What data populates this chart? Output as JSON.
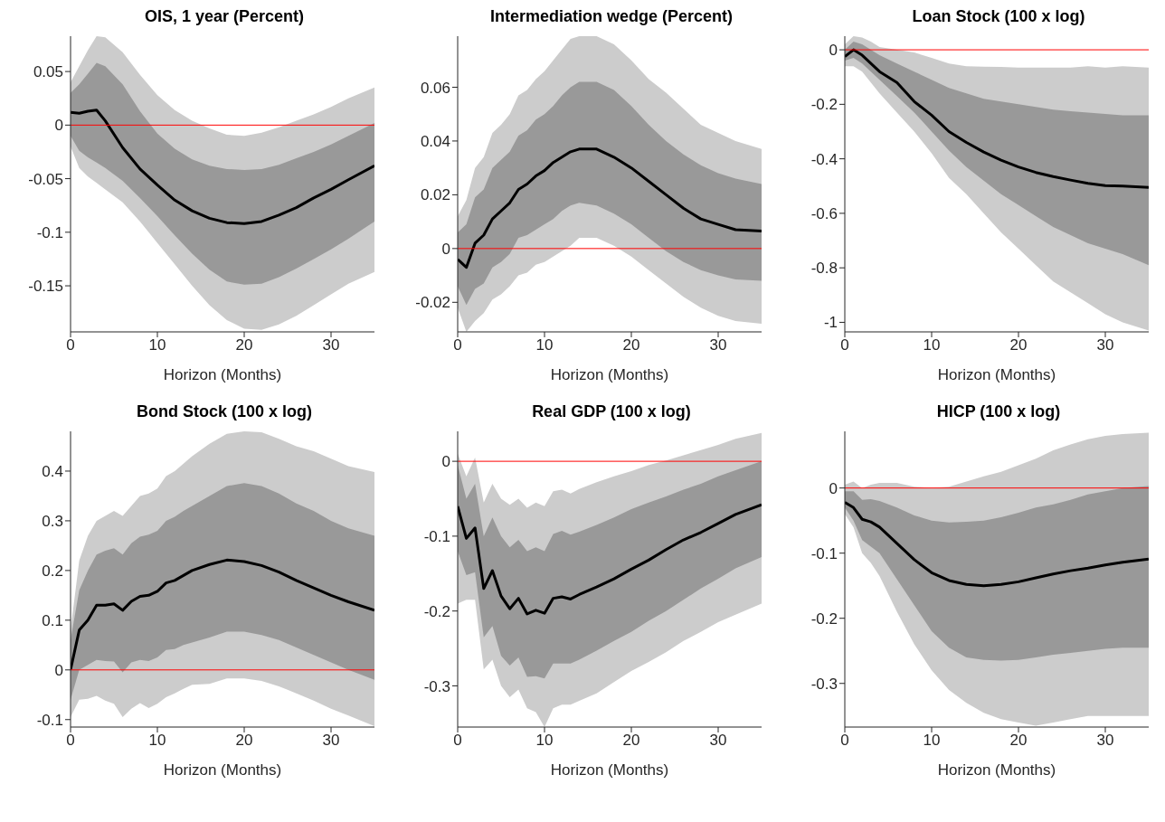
{
  "chart_data": [
    {
      "type": "line",
      "title": "OIS, 1 year (Percent)",
      "xlabel": "Horizon (Months)",
      "x": [
        0,
        1,
        2,
        3,
        4,
        6,
        8,
        10,
        12,
        14,
        16,
        18,
        20,
        22,
        24,
        26,
        28,
        30,
        32,
        35
      ],
      "xlim": [
        0,
        35
      ],
      "xticks": [
        0,
        10,
        20,
        30
      ],
      "ylim": [
        -0.193,
        0.083
      ],
      "yticks": [
        -0.15,
        -0.1,
        -0.05,
        0,
        0.05
      ],
      "ref_lines": [
        {
          "axis": "y",
          "value": 0,
          "color": "#ff0000"
        }
      ],
      "series": [
        {
          "type": "line",
          "color": "#cccccc",
          "values": [
            null,
            null,
            null,
            null,
            null,
            null,
            null,
            null,
            null,
            null,
            null,
            null,
            null,
            null,
            null,
            null,
            null,
            null,
            null,
            null
          ],
          "lower": [
            -0.02,
            -0.04,
            -0.048,
            -0.054,
            -0.06,
            -0.072,
            -0.09,
            -0.11,
            -0.13,
            -0.15,
            -0.168,
            -0.182,
            -0.19,
            -0.191,
            -0.186,
            -0.178,
            -0.168,
            -0.158,
            -0.148,
            -0.137
          ],
          "upper": [
            0.04,
            0.055,
            0.07,
            0.083,
            0.082,
            0.068,
            0.047,
            0.028,
            0.014,
            0.004,
            -0.003,
            -0.009,
            -0.01,
            -0.007,
            -0.002,
            0.004,
            0.01,
            0.017,
            0.025,
            0.035
          ]
        },
        {
          "type": "line",
          "color": "#999999",
          "values": [
            null,
            null,
            null,
            null,
            null,
            null,
            null,
            null,
            null,
            null,
            null,
            null,
            null,
            null,
            null,
            null,
            null,
            null,
            null,
            null
          ],
          "lower": [
            -0.01,
            -0.024,
            -0.03,
            -0.035,
            -0.04,
            -0.052,
            -0.068,
            -0.085,
            -0.103,
            -0.12,
            -0.135,
            -0.146,
            -0.149,
            -0.148,
            -0.142,
            -0.134,
            -0.125,
            -0.116,
            -0.106,
            -0.09
          ],
          "upper": [
            0.03,
            0.038,
            0.048,
            0.058,
            0.055,
            0.038,
            0.013,
            -0.008,
            -0.022,
            -0.032,
            -0.038,
            -0.041,
            -0.042,
            -0.041,
            -0.037,
            -0.031,
            -0.025,
            -0.018,
            -0.01,
            0.002
          ]
        },
        {
          "type": "line",
          "color": "#000000",
          "values": [
            0.012,
            0.011,
            0.013,
            0.014,
            0.004,
            -0.021,
            -0.041,
            -0.056,
            -0.07,
            -0.08,
            -0.087,
            -0.091,
            -0.092,
            -0.09,
            -0.084,
            -0.077,
            -0.068,
            -0.06,
            -0.051,
            -0.038
          ]
        }
      ]
    },
    {
      "type": "line",
      "title": "Intermediation wedge (Percent)",
      "xlabel": "Horizon (Months)",
      "x": [
        0,
        1,
        2,
        3,
        4,
        5,
        6,
        7,
        8,
        9,
        10,
        11,
        12,
        13,
        14,
        16,
        18,
        20,
        22,
        24,
        26,
        28,
        30,
        32,
        35
      ],
      "xlim": [
        0,
        35
      ],
      "xticks": [
        0,
        10,
        20,
        30
      ],
      "ylim": [
        -0.031,
        0.079
      ],
      "yticks": [
        -0.02,
        0,
        0.02,
        0.04,
        0.06
      ],
      "ref_lines": [
        {
          "axis": "y",
          "value": 0,
          "color": "#ff0000"
        }
      ],
      "series": [
        {
          "type": "line",
          "color": "#cccccc",
          "values": [
            null,
            null,
            null,
            null,
            null,
            null,
            null,
            null,
            null,
            null,
            null,
            null,
            null,
            null,
            null,
            null,
            null,
            null,
            null,
            null,
            null,
            null,
            null,
            null,
            null
          ],
          "lower": [
            -0.022,
            -0.031,
            -0.027,
            -0.024,
            -0.019,
            -0.017,
            -0.014,
            -0.01,
            -0.009,
            -0.006,
            -0.005,
            -0.003,
            -0.001,
            0.001,
            0.004,
            0.004,
            0.001,
            -0.003,
            -0.008,
            -0.013,
            -0.018,
            -0.022,
            -0.025,
            -0.027,
            -0.028
          ],
          "upper": [
            0.012,
            0.018,
            0.03,
            0.034,
            0.043,
            0.046,
            0.05,
            0.057,
            0.059,
            0.063,
            0.066,
            0.07,
            0.074,
            0.078,
            0.079,
            0.079,
            0.076,
            0.07,
            0.063,
            0.058,
            0.052,
            0.046,
            0.043,
            0.04,
            0.037
          ]
        },
        {
          "type": "line",
          "color": "#999999",
          "values": [
            null,
            null,
            null,
            null,
            null,
            null,
            null,
            null,
            null,
            null,
            null,
            null,
            null,
            null,
            null,
            null,
            null,
            null,
            null,
            null,
            null,
            null,
            null,
            null,
            null
          ],
          "lower": [
            -0.014,
            -0.021,
            -0.015,
            -0.013,
            -0.007,
            -0.005,
            -0.002,
            0.004,
            0.005,
            0.007,
            0.009,
            0.011,
            0.014,
            0.016,
            0.017,
            0.016,
            0.013,
            0.009,
            0.004,
            -0.001,
            -0.005,
            -0.008,
            -0.01,
            -0.0115,
            -0.012
          ],
          "upper": [
            0.006,
            0.009,
            0.019,
            0.022,
            0.03,
            0.033,
            0.036,
            0.042,
            0.044,
            0.048,
            0.05,
            0.053,
            0.057,
            0.06,
            0.062,
            0.062,
            0.059,
            0.053,
            0.046,
            0.04,
            0.035,
            0.031,
            0.028,
            0.026,
            0.024
          ]
        },
        {
          "type": "line",
          "color": "#000000",
          "values": [
            -0.004,
            -0.007,
            0.002,
            0.005,
            0.011,
            0.014,
            0.017,
            0.022,
            0.024,
            0.027,
            0.029,
            0.032,
            0.034,
            0.036,
            0.037,
            0.037,
            0.034,
            0.03,
            0.025,
            0.02,
            0.015,
            0.011,
            0.009,
            0.007,
            0.0065
          ]
        }
      ]
    },
    {
      "type": "line",
      "title": "Loan Stock (100 x log)",
      "xlabel": "Horizon (Months)",
      "x": [
        0,
        1,
        2,
        3,
        4,
        6,
        8,
        10,
        12,
        14,
        16,
        18,
        20,
        22,
        24,
        26,
        28,
        30,
        32,
        35
      ],
      "xlim": [
        0,
        35
      ],
      "xticks": [
        0,
        10,
        20,
        30
      ],
      "ylim": [
        -1.035,
        0.05
      ],
      "yticks": [
        -1,
        -0.8,
        -0.6,
        -0.4,
        -0.2,
        0
      ],
      "ref_lines": [
        {
          "axis": "y",
          "value": 0,
          "color": "#ff0000"
        }
      ],
      "series": [
        {
          "type": "line",
          "color": "#cccccc",
          "values": [
            null,
            null,
            null,
            null,
            null,
            null,
            null,
            null,
            null,
            null,
            null,
            null,
            null,
            null,
            null,
            null,
            null,
            null,
            null,
            null
          ],
          "lower": [
            -0.06,
            -0.06,
            -0.08,
            -0.12,
            -0.16,
            -0.23,
            -0.3,
            -0.38,
            -0.47,
            -0.53,
            -0.6,
            -0.67,
            -0.73,
            -0.79,
            -0.85,
            -0.89,
            -0.93,
            -0.97,
            -1.0,
            -1.03
          ],
          "upper": [
            0.02,
            0.05,
            0.045,
            0.03,
            0.01,
            0,
            -0.01,
            -0.03,
            -0.05,
            -0.06,
            -0.062,
            -0.063,
            -0.065,
            -0.065,
            -0.065,
            -0.065,
            -0.06,
            -0.065,
            -0.06,
            -0.065
          ]
        },
        {
          "type": "line",
          "color": "#999999",
          "values": [
            null,
            null,
            null,
            null,
            null,
            null,
            null,
            null,
            null,
            null,
            null,
            null,
            null,
            null,
            null,
            null,
            null,
            null,
            null,
            null
          ],
          "lower": [
            -0.04,
            -0.03,
            -0.05,
            -0.08,
            -0.11,
            -0.17,
            -0.23,
            -0.3,
            -0.37,
            -0.43,
            -0.48,
            -0.53,
            -0.57,
            -0.61,
            -0.65,
            -0.68,
            -0.71,
            -0.73,
            -0.75,
            -0.79
          ],
          "upper": [
            0,
            0.03,
            0.02,
            0,
            -0.02,
            -0.05,
            -0.08,
            -0.11,
            -0.14,
            -0.16,
            -0.18,
            -0.19,
            -0.2,
            -0.21,
            -0.22,
            -0.225,
            -0.23,
            -0.235,
            -0.24,
            -0.24
          ]
        },
        {
          "type": "line",
          "color": "#000000",
          "values": [
            -0.025,
            0,
            -0.02,
            -0.05,
            -0.08,
            -0.12,
            -0.19,
            -0.24,
            -0.3,
            -0.34,
            -0.375,
            -0.405,
            -0.43,
            -0.45,
            -0.465,
            -0.478,
            -0.49,
            -0.498,
            -0.5,
            -0.505
          ]
        }
      ]
    },
    {
      "type": "line",
      "title": "Bond Stock (100 x log)",
      "xlabel": "Horizon (Months)",
      "x": [
        0,
        1,
        2,
        3,
        4,
        5,
        6,
        7,
        8,
        9,
        10,
        11,
        12,
        13,
        14,
        16,
        18,
        20,
        22,
        24,
        26,
        28,
        30,
        32,
        35
      ],
      "xlim": [
        0,
        35
      ],
      "xticks": [
        0,
        10,
        20,
        30
      ],
      "ylim": [
        -0.115,
        0.48
      ],
      "yticks": [
        -0.1,
        0,
        0.1,
        0.2,
        0.3,
        0.4
      ],
      "ref_lines": [
        {
          "axis": "y",
          "value": 0,
          "color": "#ff0000"
        }
      ],
      "series": [
        {
          "type": "line",
          "color": "#cccccc",
          "values": [
            null,
            null,
            null,
            null,
            null,
            null,
            null,
            null,
            null,
            null,
            null,
            null,
            null,
            null,
            null,
            null,
            null,
            null,
            null,
            null,
            null,
            null,
            null,
            null,
            null
          ],
          "lower": [
            -0.095,
            -0.06,
            -0.058,
            -0.052,
            -0.062,
            -0.068,
            -0.095,
            -0.078,
            -0.067,
            -0.077,
            -0.068,
            -0.055,
            -0.047,
            -0.038,
            -0.03,
            -0.028,
            -0.017,
            -0.017,
            -0.022,
            -0.033,
            -0.047,
            -0.062,
            -0.078,
            -0.092,
            -0.113
          ],
          "upper": [
            0.08,
            0.22,
            0.27,
            0.3,
            0.31,
            0.32,
            0.31,
            0.33,
            0.35,
            0.355,
            0.365,
            0.39,
            0.4,
            0.415,
            0.43,
            0.455,
            0.475,
            0.48,
            0.478,
            0.465,
            0.45,
            0.44,
            0.425,
            0.41,
            0.398
          ]
        },
        {
          "type": "line",
          "color": "#999999",
          "values": [
            null,
            null,
            null,
            null,
            null,
            null,
            null,
            null,
            null,
            null,
            null,
            null,
            null,
            null,
            null,
            null,
            null,
            null,
            null,
            null,
            null,
            null,
            null,
            null,
            null
          ],
          "lower": [
            -0.06,
            0,
            0.01,
            0.02,
            0.018,
            0.017,
            -0.005,
            0.015,
            0.02,
            0.018,
            0.025,
            0.04,
            0.042,
            0.05,
            0.055,
            0.065,
            0.077,
            0.077,
            0.07,
            0.06,
            0.045,
            0.03,
            0.015,
            0,
            -0.02
          ],
          "upper": [
            0.06,
            0.16,
            0.2,
            0.232,
            0.24,
            0.245,
            0.232,
            0.255,
            0.268,
            0.272,
            0.28,
            0.3,
            0.308,
            0.32,
            0.33,
            0.35,
            0.37,
            0.376,
            0.37,
            0.355,
            0.335,
            0.32,
            0.3,
            0.285,
            0.27
          ]
        },
        {
          "type": "line",
          "color": "#000000",
          "values": [
            0,
            0.08,
            0.1,
            0.13,
            0.13,
            0.133,
            0.12,
            0.138,
            0.148,
            0.15,
            0.158,
            0.175,
            0.18,
            0.19,
            0.2,
            0.212,
            0.221,
            0.218,
            0.21,
            0.197,
            0.18,
            0.165,
            0.15,
            0.137,
            0.12
          ]
        }
      ]
    },
    {
      "type": "line",
      "title": "Real GDP (100 x log)",
      "xlabel": "Horizon (Months)",
      "x": [
        0,
        1,
        2,
        3,
        4,
        5,
        6,
        7,
        8,
        9,
        10,
        11,
        12,
        13,
        14,
        16,
        18,
        20,
        22,
        24,
        26,
        28,
        30,
        32,
        35
      ],
      "xlim": [
        0,
        35
      ],
      "xticks": [
        0,
        10,
        20,
        30
      ],
      "ylim": [
        -0.355,
        0.04
      ],
      "yticks": [
        -0.3,
        -0.2,
        -0.1,
        0
      ],
      "ref_lines": [
        {
          "axis": "y",
          "value": 0,
          "color": "#ff0000"
        }
      ],
      "series": [
        {
          "type": "line",
          "color": "#cccccc",
          "values": [
            null,
            null,
            null,
            null,
            null,
            null,
            null,
            null,
            null,
            null,
            null,
            null,
            null,
            null,
            null,
            null,
            null,
            null,
            null,
            null,
            null,
            null,
            null,
            null,
            null
          ],
          "lower": [
            -0.19,
            -0.185,
            -0.185,
            -0.278,
            -0.265,
            -0.3,
            -0.315,
            -0.305,
            -0.33,
            -0.335,
            -0.355,
            -0.33,
            -0.325,
            -0.325,
            -0.32,
            -0.31,
            -0.295,
            -0.28,
            -0.268,
            -0.255,
            -0.24,
            -0.228,
            -0.215,
            -0.205,
            -0.19
          ],
          "upper": [
            0.01,
            -0.02,
            0.005,
            -0.055,
            -0.03,
            -0.05,
            -0.058,
            -0.05,
            -0.062,
            -0.055,
            -0.06,
            -0.04,
            -0.038,
            -0.043,
            -0.037,
            -0.028,
            -0.02,
            -0.013,
            -0.005,
            0.001,
            0.008,
            0.015,
            0.022,
            0.03,
            0.038
          ]
        },
        {
          "type": "line",
          "color": "#999999",
          "values": [
            null,
            null,
            null,
            null,
            null,
            null,
            null,
            null,
            null,
            null,
            null,
            null,
            null,
            null,
            null,
            null,
            null,
            null,
            null,
            null,
            null,
            null,
            null,
            null,
            null
          ],
          "lower": [
            -0.12,
            -0.152,
            -0.148,
            -0.235,
            -0.22,
            -0.26,
            -0.273,
            -0.262,
            -0.288,
            -0.287,
            -0.29,
            -0.27,
            -0.27,
            -0.27,
            -0.265,
            -0.253,
            -0.24,
            -0.228,
            -0.213,
            -0.2,
            -0.185,
            -0.17,
            -0.157,
            -0.143,
            -0.128
          ],
          "upper": [
            -0.005,
            -0.05,
            -0.03,
            -0.1,
            -0.075,
            -0.1,
            -0.115,
            -0.105,
            -0.12,
            -0.115,
            -0.12,
            -0.097,
            -0.093,
            -0.098,
            -0.094,
            -0.085,
            -0.075,
            -0.064,
            -0.055,
            -0.047,
            -0.038,
            -0.03,
            -0.02,
            -0.012,
            0
          ]
        },
        {
          "type": "line",
          "color": "#000000",
          "values": [
            -0.06,
            -0.103,
            -0.089,
            -0.17,
            -0.146,
            -0.18,
            -0.197,
            -0.183,
            -0.204,
            -0.199,
            -0.203,
            -0.183,
            -0.181,
            -0.184,
            -0.178,
            -0.168,
            -0.157,
            -0.144,
            -0.132,
            -0.118,
            -0.105,
            -0.095,
            -0.083,
            -0.071,
            -0.058
          ]
        }
      ]
    },
    {
      "type": "line",
      "title": "HICP (100 x log)",
      "xlabel": "Horizon (Months)",
      "x": [
        0,
        1,
        2,
        3,
        4,
        6,
        8,
        10,
        12,
        14,
        16,
        18,
        20,
        22,
        24,
        26,
        28,
        30,
        32,
        35
      ],
      "xlim": [
        0,
        35
      ],
      "xticks": [
        0,
        10,
        20,
        30
      ],
      "ylim": [
        -0.367,
        0.087
      ],
      "yticks": [
        -0.3,
        -0.2,
        -0.1,
        0
      ],
      "ref_lines": [
        {
          "axis": "y",
          "value": 0,
          "color": "#ff0000"
        }
      ],
      "series": [
        {
          "type": "line",
          "color": "#cccccc",
          "values": [
            null,
            null,
            null,
            null,
            null,
            null,
            null,
            null,
            null,
            null,
            null,
            null,
            null,
            null,
            null,
            null,
            null,
            null,
            null,
            null
          ],
          "lower": [
            -0.04,
            -0.06,
            -0.1,
            -0.115,
            -0.135,
            -0.19,
            -0.24,
            -0.28,
            -0.31,
            -0.33,
            -0.345,
            -0.355,
            -0.36,
            -0.365,
            -0.36,
            -0.355,
            -0.35,
            -0.35,
            -0.35,
            -0.35
          ],
          "upper": [
            0.005,
            0.01,
            0,
            0.005,
            0.008,
            0.008,
            0.002,
            0,
            0.002,
            0.01,
            0.018,
            0.025,
            0.035,
            0.045,
            0.058,
            0.067,
            0.075,
            0.08,
            0.083,
            0.085
          ]
        },
        {
          "type": "line",
          "color": "#999999",
          "values": [
            null,
            null,
            null,
            null,
            null,
            null,
            null,
            null,
            null,
            null,
            null,
            null,
            null,
            null,
            null,
            null,
            null,
            null,
            null,
            null
          ],
          "lower": [
            -0.03,
            -0.05,
            -0.08,
            -0.09,
            -0.1,
            -0.14,
            -0.18,
            -0.22,
            -0.245,
            -0.26,
            -0.264,
            -0.265,
            -0.264,
            -0.26,
            -0.256,
            -0.253,
            -0.25,
            -0.247,
            -0.245,
            -0.245
          ],
          "upper": [
            -0.005,
            -0.005,
            -0.018,
            -0.017,
            -0.02,
            -0.03,
            -0.042,
            -0.05,
            -0.053,
            -0.052,
            -0.05,
            -0.045,
            -0.038,
            -0.03,
            -0.025,
            -0.018,
            -0.01,
            -0.005,
            0,
            0.003
          ]
        },
        {
          "type": "line",
          "color": "#000000",
          "values": [
            -0.022,
            -0.03,
            -0.048,
            -0.052,
            -0.06,
            -0.085,
            -0.11,
            -0.13,
            -0.142,
            -0.148,
            -0.15,
            -0.148,
            -0.144,
            -0.138,
            -0.132,
            -0.127,
            -0.123,
            -0.118,
            -0.114,
            -0.109
          ]
        }
      ]
    }
  ]
}
